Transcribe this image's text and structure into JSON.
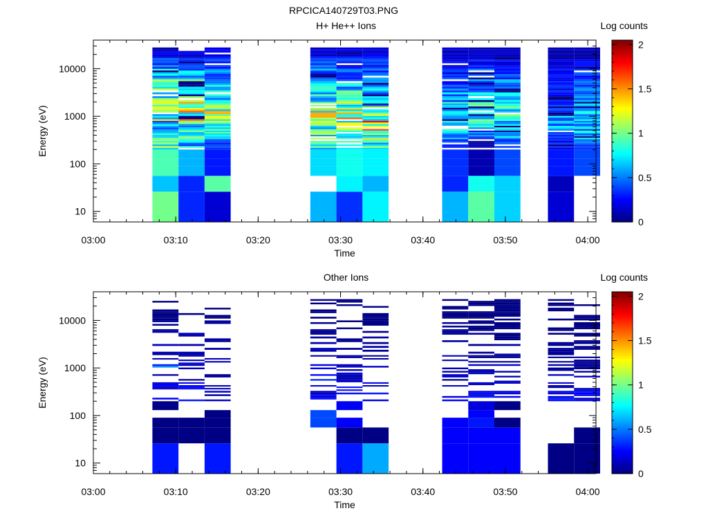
{
  "figure": {
    "title": "RPCICA140729T03.PNG"
  },
  "chart_data": [
    {
      "type": "heatmap",
      "title": "H+ He++ Ions",
      "xlabel": "Time",
      "ylabel": "Energy (eV)",
      "colorbar_label": "Log counts",
      "colorbar_ticks": [
        "0",
        "0.5",
        "1",
        "1.5",
        "2"
      ],
      "colorbar_range": [
        0,
        2.05
      ],
      "x_range": [
        "03:00",
        "04:01"
      ],
      "x_ticks": [
        "03:00",
        "03:10",
        "03:20",
        "03:30",
        "03:40",
        "03:50",
        "04:00"
      ],
      "y_scale": "log",
      "y_range": [
        6,
        40000
      ],
      "y_ticks": [
        "10",
        "100",
        "1000",
        "10000"
      ],
      "time_bins": [
        [
          "03:07:10",
          "03:10:20"
        ],
        [
          "03:10:20",
          "03:13:30"
        ],
        [
          "03:13:30",
          "03:16:40"
        ],
        [
          "03:26:20",
          "03:29:30"
        ],
        [
          "03:29:30",
          "03:32:40"
        ],
        [
          "03:32:40",
          "03:35:50"
        ],
        [
          "03:42:20",
          "03:45:30"
        ],
        [
          "03:45:30",
          "03:48:40"
        ],
        [
          "03:48:40",
          "03:51:50"
        ],
        [
          "03:55:10",
          "03:58:20"
        ],
        [
          "03:58:20",
          "04:01:30"
        ]
      ],
      "energy_edges": [
        6,
        26,
        56,
        90,
        130,
        200,
        330,
        500,
        800,
        1300,
        2000,
        3500,
        6000,
        10000,
        17000,
        28000,
        40000
      ],
      "low_energy_values": [
        [
          1.0,
          0.65
        ],
        [
          0.33,
          0.33
        ],
        [
          0.17,
          0.95
        ],
        [
          0.62,
          null
        ],
        [
          0.35,
          0.75
        ],
        [
          0.75,
          0.62
        ],
        [
          0.62,
          0.33
        ],
        [
          0.95,
          0.8
        ],
        [
          0.68,
          0.68
        ],
        [
          0.17,
          0.12
        ],
        [
          null,
          null
        ]
      ],
      "high_energy_band_values": [
        [
          0.92,
          0.7,
          0.55,
          0.95,
          1.1,
          1.0,
          0.85,
          0.6,
          0.4,
          0.2
        ],
        [
          0.62,
          0.85,
          0.8,
          1.15,
          1.05,
          0.95,
          0.75,
          0.55,
          0.35,
          0.25
        ],
        [
          0.3,
          0.7,
          0.9,
          1.0,
          0.9,
          0.85,
          0.7,
          0.5,
          0.3,
          0.2
        ],
        [
          0.7,
          0.85,
          0.95,
          1.05,
          1.0,
          0.85,
          0.65,
          0.5,
          0.35,
          0.2
        ],
        [
          0.8,
          0.75,
          0.9,
          1.1,
          0.95,
          0.8,
          0.6,
          0.45,
          0.3,
          0.2
        ],
        [
          0.75,
          0.95,
          1.25,
          1.0,
          0.8,
          0.7,
          0.6,
          0.45,
          0.3,
          0.2
        ],
        [
          0.35,
          0.55,
          0.7,
          0.7,
          0.65,
          0.55,
          0.45,
          0.35,
          0.25,
          0.15
        ],
        [
          0.1,
          0.45,
          0.75,
          0.85,
          0.8,
          0.7,
          0.55,
          0.4,
          0.25,
          0.15
        ],
        [
          0.4,
          0.55,
          0.7,
          0.8,
          0.75,
          0.65,
          0.55,
          0.4,
          0.25,
          0.15
        ],
        [
          0.3,
          0.4,
          0.55,
          0.55,
          0.4,
          0.3,
          0.3,
          0.3,
          0.2,
          0.1
        ],
        [
          0.4,
          0.6,
          0.65,
          0.6,
          0.5,
          0.45,
          0.4,
          0.35,
          0.25,
          0.1
        ]
      ]
    },
    {
      "type": "heatmap",
      "title": "Other Ions",
      "xlabel": "Time",
      "ylabel": "Energy (eV)",
      "colorbar_label": "Log counts",
      "colorbar_ticks": [
        "0",
        "0.5",
        "1",
        "1.5",
        "2"
      ],
      "colorbar_range": [
        0,
        2.05
      ],
      "x_range": [
        "03:00",
        "04:01"
      ],
      "x_ticks": [
        "03:00",
        "03:10",
        "03:20",
        "03:30",
        "03:40",
        "03:50",
        "04:00"
      ],
      "y_scale": "log",
      "y_range": [
        6,
        40000
      ],
      "y_ticks": [
        "10",
        "100",
        "1000",
        "10000"
      ],
      "time_bins": [
        [
          "03:07:10",
          "03:10:20"
        ],
        [
          "03:10:20",
          "03:13:30"
        ],
        [
          "03:13:30",
          "03:16:40"
        ],
        [
          "03:26:20",
          "03:29:30"
        ],
        [
          "03:29:30",
          "03:32:40"
        ],
        [
          "03:32:40",
          "03:35:50"
        ],
        [
          "03:42:20",
          "03:45:30"
        ],
        [
          "03:45:30",
          "03:48:40"
        ],
        [
          "03:48:40",
          "03:51:50"
        ],
        [
          "03:55:10",
          "03:58:20"
        ],
        [
          "03:58:20",
          "04:01:30"
        ]
      ],
      "energy_edges": [
        6,
        26,
        56,
        90,
        130,
        200,
        330,
        500,
        800,
        1300,
        2000,
        3500,
        6000,
        10000,
        17000,
        28000,
        40000
      ],
      "low_energy_values": [
        [
          0.3,
          0.01,
          0.01
        ],
        [
          null,
          0.01,
          0.01
        ],
        [
          0.3,
          0.01,
          0.01
        ],
        [
          null,
          null,
          0.4
        ],
        [
          0.3,
          0.01,
          0.25
        ],
        [
          0.6,
          0.01,
          null
        ],
        [
          0.25,
          0.25,
          0.25
        ],
        [
          0.25,
          0.25,
          0.3
        ],
        [
          0.25,
          0.25,
          0.01
        ],
        [
          0.01,
          null,
          null
        ],
        [
          0.01,
          0.01,
          null
        ]
      ],
      "high_energy_band_values": [
        [
          0.3,
          0.2,
          0.1,
          0.5,
          0.15,
          0.1,
          0.1,
          0.05,
          0.01,
          0.01
        ],
        [
          0.25,
          0.2,
          0.1,
          0.15,
          0.1,
          0.1,
          0.1,
          0.05,
          0.01,
          0.01
        ],
        [
          0.1,
          0.1,
          0.05,
          0.1,
          0.1,
          0.05,
          0.05,
          0.05,
          0.01,
          0.01
        ],
        [
          0.2,
          0.3,
          0.25,
          0.2,
          0.1,
          0.1,
          0.05,
          0.05,
          0.01,
          0.01
        ],
        [
          0.25,
          0.2,
          0.15,
          0.1,
          0.1,
          0.05,
          0.05,
          0.01,
          0.01,
          0.01
        ],
        [
          0.3,
          0.15,
          0.1,
          0.1,
          0.05,
          0.05,
          0.05,
          0.01,
          0.01,
          0.01
        ],
        [
          0.25,
          0.2,
          0.1,
          0.1,
          0.1,
          0.05,
          0.05,
          0.05,
          0.01,
          0.01
        ],
        [
          0.25,
          0.2,
          0.15,
          0.1,
          0.05,
          0.05,
          0.05,
          0.01,
          0.01,
          0.01
        ],
        [
          0.2,
          0.15,
          0.1,
          0.1,
          0.05,
          0.05,
          0.01,
          0.01,
          0.01,
          0.01
        ],
        [
          0.25,
          0.1,
          0.1,
          0.05,
          0.05,
          0.05,
          0.01,
          0.01,
          0.01,
          0.01
        ],
        [
          0.2,
          0.15,
          0.1,
          0.05,
          0.05,
          0.05,
          0.01,
          0.01,
          0.01,
          0.01
        ]
      ]
    }
  ]
}
